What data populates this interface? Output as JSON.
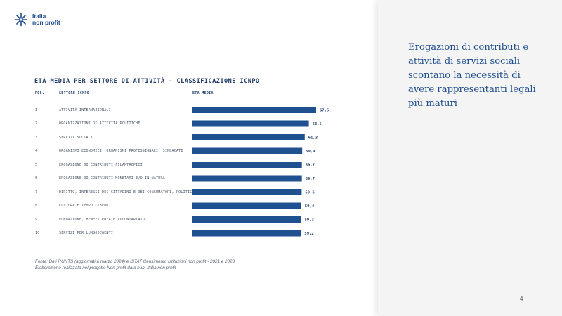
{
  "brand": {
    "line1": "Italia",
    "line2": "non profit",
    "icon": "sparkle-cross-icon"
  },
  "colors": {
    "brand_blue": "#1f5191",
    "headline_blue": "#1e4d8c",
    "panel_bg": "#f4f4f5"
  },
  "chart": {
    "title": "ETÀ MEDIA PER SETTORE DI ATTIVITÀ - CLASSIFICAZIONE ICNPO",
    "col_pos": "POS.",
    "col_sector": "SETTORE ICNPO",
    "col_age": "ETÀ MEDIA"
  },
  "chart_data": {
    "type": "bar",
    "orientation": "horizontal",
    "title": "ETÀ MEDIA PER SETTORE DI ATTIVITÀ - CLASSIFICAZIONE ICNPO",
    "positions": [
      "1",
      "2",
      "3",
      "4",
      "5",
      "6",
      "7",
      "8",
      "9",
      "10"
    ],
    "categories": [
      "ATTIVITÀ INTERNAZIONALI",
      "ORGANIZZAZIONI DI ATTIVITÀ POLITICHE",
      "SERVIZI SOCIALI",
      "ORGANISMI ECONOMICI, ORGANISMI PROFESSIONALI, SINDACATI",
      "EROGAZIONE DI CONTRIBUTI FILANTROPICI",
      "EROGAZIONE DI CONTRIBUTI MONETARI E/O IN NATURA",
      "DIRITTO, INTERESSI DEI CITTADINI E DEI CONSUMATORI, POLITICA",
      "CULTURA E TEMPO LIBERO",
      "FONDAZIONE, BENEFICENZA E VOLONTARIATO",
      "SERVIZI PER LUNGODEGENTI"
    ],
    "values": [
      67.5,
      63.5,
      61.3,
      59.9,
      59.7,
      59.7,
      59.6,
      59.4,
      59.3,
      59.2
    ],
    "value_labels": [
      "67,5",
      "63,5",
      "61,3",
      "59,9",
      "59,7",
      "59,7",
      "59,6",
      "59,4",
      "59,3",
      "59,2"
    ]
  },
  "source": "Fonte: Dati RUNTS (aggiornati a marzo 2024) e ISTAT Censimento Istituzioni non profit - 2021 e 2023. Elaborazione realizzata nel progetto Non profit data hub, Italia non profit",
  "headline": "Erogazioni di contributi e attività di servizi sociali scontano la necessità di avere rappresentanti legali più maturi",
  "page_number": "4"
}
